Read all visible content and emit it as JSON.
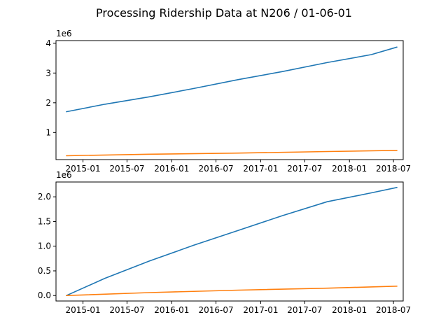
{
  "chart_data": {
    "type": "line",
    "title": "Processing Ridership Data at N206 / 01-06-01",
    "x_ticks": [
      "2015-01",
      "2015-07",
      "2016-01",
      "2016-07",
      "2017-01",
      "2017-07",
      "2018-01",
      "2018-07"
    ],
    "x_range": [
      "2014-09-12",
      "2018-08-10"
    ],
    "subplots": [
      {
        "offset_label": "1e6",
        "y_ticks": [
          {
            "value": 1,
            "label": "1"
          },
          {
            "value": 2,
            "label": "2"
          },
          {
            "value": 3,
            "label": "3"
          },
          {
            "value": 4,
            "label": "4"
          }
        ],
        "ylim": [
          0.09,
          4.09
        ],
        "series": [
          {
            "color": "#1f77b4",
            "x": [
              "2014-10-25",
              "2015-04-01",
              "2015-10-01",
              "2016-04-01",
              "2016-10-01",
              "2017-04-01",
              "2017-10-01",
              "2018-04-01",
              "2018-07-15"
            ],
            "y": [
              1.7,
              1.95,
              2.2,
              2.48,
              2.78,
              3.05,
              3.35,
              3.62,
              3.87
            ]
          },
          {
            "color": "#ff7f0e",
            "x": [
              "2014-10-25",
              "2015-10-01",
              "2016-10-01",
              "2017-10-01",
              "2018-07-15"
            ],
            "y": [
              0.22,
              0.27,
              0.31,
              0.36,
              0.4
            ]
          }
        ]
      },
      {
        "offset_label": "1e6",
        "y_ticks": [
          {
            "value": 0,
            "label": "0.0"
          },
          {
            "value": 0.5,
            "label": "0.5"
          },
          {
            "value": 1.0,
            "label": "1.0"
          },
          {
            "value": 1.5,
            "label": "1.5"
          },
          {
            "value": 2.0,
            "label": "2.0"
          }
        ],
        "ylim": [
          -0.11,
          2.3
        ],
        "series": [
          {
            "color": "#1f77b4",
            "x": [
              "2014-10-25",
              "2015-04-01",
              "2015-10-01",
              "2016-04-01",
              "2016-10-01",
              "2017-04-01",
              "2017-10-01",
              "2018-04-01",
              "2018-07-15"
            ],
            "y": [
              0.0,
              0.35,
              0.7,
              1.02,
              1.32,
              1.62,
              1.9,
              2.08,
              2.19
            ]
          },
          {
            "color": "#ff7f0e",
            "x": [
              "2014-10-25",
              "2015-10-01",
              "2016-10-01",
              "2017-10-01",
              "2018-07-15"
            ],
            "y": [
              0.0,
              0.06,
              0.11,
              0.15,
              0.19
            ]
          }
        ]
      }
    ]
  }
}
